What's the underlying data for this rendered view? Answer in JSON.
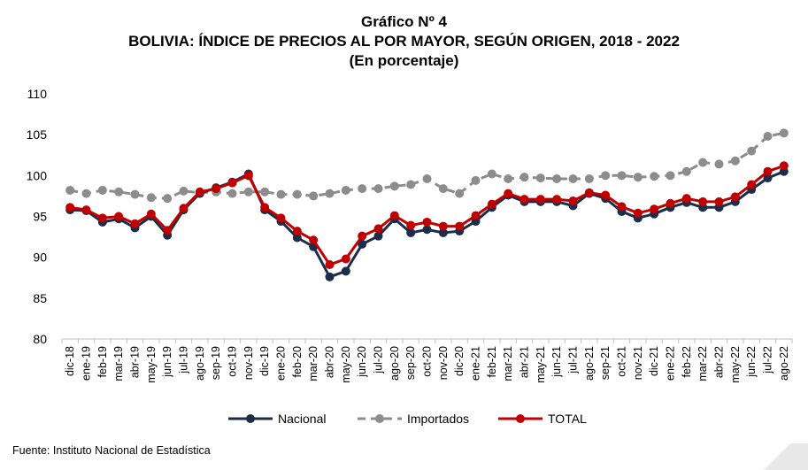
{
  "header": {
    "figure_label": "Gráfico Nº 4",
    "title": "BOLIVIA: ÍNDICE DE PRECIOS AL POR MAYOR, SEGÚN ORIGEN, 2018 - 2022",
    "subtitle": "(En porcentaje)"
  },
  "footer": {
    "source": "Fuente: Instituto Nacional de Estadística"
  },
  "chart_data": {
    "type": "line",
    "title": "BOLIVIA: ÍNDICE DE PRECIOS AL POR MAYOR, SEGÚN ORIGEN, 2018 - 2022",
    "ylim": [
      80,
      110
    ],
    "yticks": [
      80,
      85,
      90,
      95,
      100,
      105,
      110
    ],
    "grid": false,
    "legend": "bottom",
    "categories": [
      "dic-18",
      "ene-19",
      "feb-19",
      "mar-19",
      "abr-19",
      "may-19",
      "jun-19",
      "jul-19",
      "ago-19",
      "sep-19",
      "oct-19",
      "nov-19",
      "dic-19",
      "ene-20",
      "feb-20",
      "mar-20",
      "abr-20",
      "may-20",
      "jun-20",
      "jul-20",
      "ago-20",
      "sep-20",
      "oct-20",
      "nov-20",
      "dic-20",
      "ene-21",
      "feb-21",
      "mar-21",
      "abr-21",
      "may-21",
      "jun-21",
      "jul-21",
      "ago-21",
      "sep-21",
      "oct-21",
      "nov-21",
      "dic-21",
      "ene-22",
      "feb-22",
      "mar-22",
      "abr-22",
      "may-22",
      "jun-22",
      "jul-22",
      "ago-22"
    ],
    "series": [
      {
        "name": "Nacional",
        "color": "#1c2d4a",
        "style": "solid",
        "values": [
          95.8,
          95.7,
          94.3,
          94.7,
          93.6,
          95.0,
          92.7,
          95.8,
          97.8,
          98.5,
          99.2,
          100.2,
          95.8,
          94.4,
          92.4,
          91.3,
          87.6,
          88.3,
          91.6,
          92.6,
          94.7,
          93.0,
          93.4,
          93.0,
          93.2,
          94.4,
          96.1,
          97.6,
          96.8,
          96.8,
          96.8,
          96.3,
          97.8,
          97.2,
          95.6,
          94.8,
          95.3,
          96.1,
          96.7,
          96.1,
          96.1,
          96.8,
          98.3,
          99.7,
          100.5
        ]
      },
      {
        "name": "Importados",
        "color": "#8c8c8c",
        "style": "dashed",
        "values": [
          98.2,
          97.8,
          98.2,
          98.0,
          97.7,
          97.3,
          97.2,
          98.1,
          97.9,
          98.0,
          97.8,
          98.0,
          98.0,
          97.7,
          97.7,
          97.5,
          97.8,
          98.2,
          98.4,
          98.4,
          98.7,
          98.9,
          99.6,
          98.4,
          97.8,
          99.4,
          100.2,
          99.6,
          99.8,
          99.7,
          99.6,
          99.6,
          99.6,
          100.0,
          100.0,
          99.8,
          99.9,
          100.0,
          100.5,
          101.6,
          101.4,
          101.8,
          103.0,
          104.8,
          105.2
        ]
      },
      {
        "name": "TOTAL",
        "color": "#c00000",
        "style": "solid",
        "values": [
          96.1,
          95.8,
          94.8,
          95.0,
          94.1,
          95.3,
          93.3,
          96.0,
          98.0,
          98.4,
          99.1,
          100.0,
          96.1,
          94.8,
          93.2,
          92.1,
          89.1,
          89.8,
          92.6,
          93.5,
          95.1,
          93.9,
          94.3,
          93.8,
          93.8,
          95.1,
          96.5,
          97.8,
          97.1,
          97.1,
          97.1,
          96.9,
          97.9,
          97.6,
          96.2,
          95.4,
          95.9,
          96.6,
          97.2,
          96.8,
          96.8,
          97.4,
          98.9,
          100.5,
          101.2
        ]
      }
    ]
  }
}
